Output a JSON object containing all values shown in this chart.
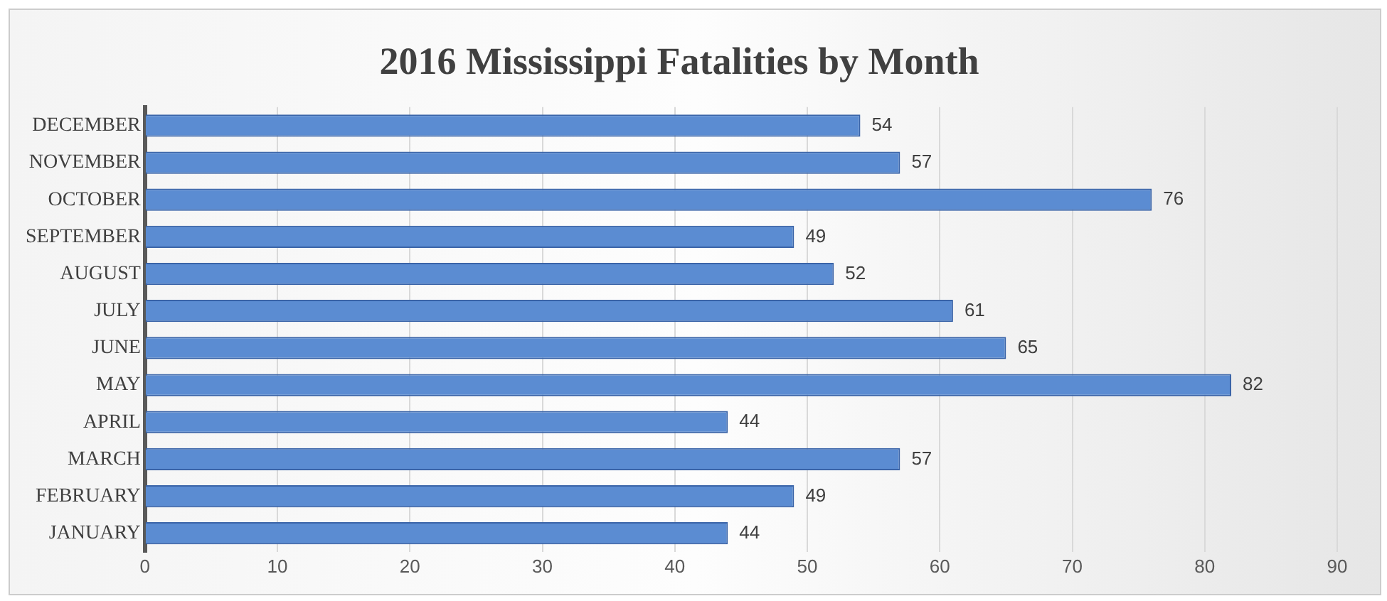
{
  "chart_data": {
    "type": "bar",
    "orientation": "horizontal",
    "title": "2016 Mississippi Fatalities by Month",
    "categories": [
      "DECEMBER",
      "NOVEMBER",
      "OCTOBER",
      "SEPTEMBER",
      "AUGUST",
      "JULY",
      "JUNE",
      "MAY",
      "APRIL",
      "MARCH",
      "FEBRUARY",
      "JANUARY"
    ],
    "values": [
      54,
      57,
      76,
      49,
      52,
      61,
      65,
      82,
      44,
      57,
      49,
      44
    ],
    "color": "#5b8cd2",
    "xlim": [
      0,
      90
    ],
    "xticks": [
      0,
      10,
      20,
      30,
      40,
      50,
      60,
      70,
      80,
      90
    ],
    "grid": "x",
    "data_labels": true
  }
}
